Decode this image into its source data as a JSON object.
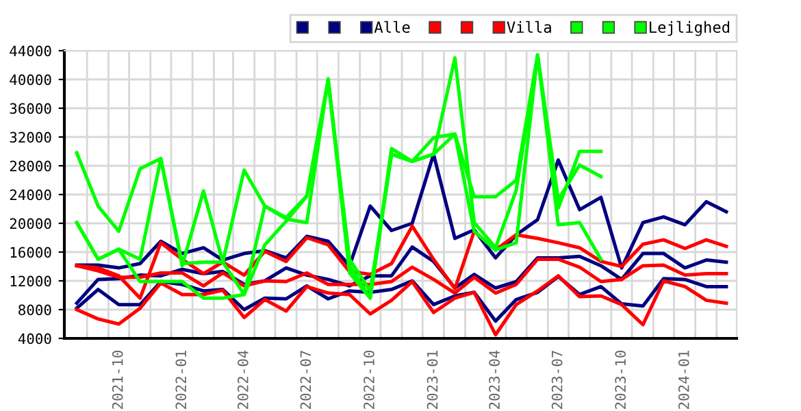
{
  "chart_data": {
    "type": "line",
    "x": [
      "2021-08",
      "2021-09",
      "2021-10",
      "2021-11",
      "2021-12",
      "2022-01",
      "2022-02",
      "2022-03",
      "2022-04",
      "2022-05",
      "2022-06",
      "2022-07",
      "2022-08",
      "2022-09",
      "2022-10",
      "2022-11",
      "2022-12",
      "2023-01",
      "2023-02",
      "2023-03",
      "2023-04",
      "2023-05",
      "2023-06",
      "2023-07",
      "2023-08",
      "2023-09",
      "2023-10",
      "2023-11",
      "2023-12",
      "2024-01",
      "2024-02",
      "2024-03"
    ],
    "series": [
      {
        "color": "#000080",
        "values": [
          8900,
          12200,
          12300,
          12800,
          12700,
          13600,
          13000,
          13300,
          11500,
          12000,
          13800,
          12800,
          12200,
          11300,
          12700,
          12700,
          16700,
          14700,
          11000,
          12900,
          11000,
          11900,
          15200,
          15200,
          15400,
          14100,
          12200,
          15800,
          15800,
          13800,
          14900,
          14600
        ]
      },
      {
        "color": "#000080",
        "values": [
          8200,
          10800,
          8700,
          8700,
          11900,
          11500,
          10600,
          10800,
          8000,
          9600,
          9500,
          11300,
          9500,
          10600,
          10400,
          10800,
          12000,
          8700,
          9900,
          10400,
          6400,
          9400,
          10400,
          12600,
          10100,
          11200,
          8800,
          8500,
          12300,
          12200,
          11200,
          11200
        ]
      },
      {
        "name": "Alle",
        "color": "#000080",
        "values": [
          14200,
          14200,
          13800,
          14400,
          17500,
          15800,
          16600,
          14900,
          15800,
          16200,
          15200,
          18200,
          17500,
          14100,
          22400,
          19000,
          20000,
          29600,
          17900,
          19100,
          15200,
          18400,
          20500,
          28800,
          21900,
          23600,
          13800,
          20100,
          20900,
          19800,
          23000,
          21600
        ]
      },
      {
        "color": "#ff0000",
        "values": [
          14100,
          13400,
          12500,
          12500,
          13100,
          13100,
          11300,
          13100,
          11300,
          12000,
          11900,
          13100,
          11500,
          11500,
          11500,
          11900,
          13900,
          12200,
          10300,
          12500,
          10300,
          11500,
          15000,
          15000,
          13900,
          11900,
          12200,
          14100,
          14200,
          12800,
          13000,
          13000
        ]
      },
      {
        "color": "#ff0000",
        "values": [
          8000,
          6700,
          6000,
          8200,
          11700,
          10100,
          10100,
          10700,
          6900,
          9400,
          7800,
          11200,
          10300,
          10100,
          7400,
          9300,
          11900,
          7600,
          9600,
          10400,
          4500,
          8700,
          10600,
          12700,
          9800,
          9900,
          8700,
          5900,
          12000,
          11200,
          9300,
          8900
        ]
      },
      {
        "name": "Villa",
        "color": "#ff0000",
        "values": [
          14100,
          13800,
          12700,
          9600,
          17300,
          15000,
          13000,
          14600,
          12800,
          16100,
          14700,
          18000,
          17000,
          13300,
          12900,
          14400,
          19600,
          15000,
          10900,
          18900,
          16300,
          18400,
          17900,
          17300,
          16600,
          14700,
          14000,
          17100,
          17700,
          16500,
          17700,
          16800
        ]
      },
      {
        "color": "#00ff00",
        "values": [
          20100,
          15000,
          16400,
          15000,
          29000,
          14400,
          14600,
          14600,
          10100,
          22400,
          20800,
          23800,
          39900,
          15000,
          10600,
          29600,
          28600,
          29600,
          43000,
          20100,
          16600,
          24600,
          43400,
          23300,
          28100,
          26500,
          null,
          null,
          null,
          null,
          null,
          null
        ]
      },
      {
        "color": "#00ff00",
        "values": [
          20100,
          15000,
          16400,
          11900,
          11900,
          11900,
          9600,
          9600,
          10100,
          17000,
          20300,
          23800,
          39900,
          13100,
          9600,
          29600,
          28600,
          29600,
          32400,
          18900,
          16300,
          17300,
          43400,
          19800,
          20100,
          15000,
          null,
          null,
          null,
          null,
          null,
          null
        ]
      },
      {
        "name": "Lejlighed",
        "color": "#00ff00",
        "values": [
          29800,
          22400,
          18900,
          27600,
          29000,
          14100,
          24500,
          14600,
          27400,
          22400,
          20600,
          20100,
          40100,
          14100,
          9600,
          30400,
          28600,
          31900,
          32400,
          23700,
          23700,
          26000,
          43400,
          22100,
          30000,
          30000,
          null,
          null,
          null,
          null,
          null,
          null
        ]
      }
    ],
    "xlim": [
      "2021-07-14",
      "2024-03-16"
    ],
    "xticks": [
      {
        "value": "2021-10",
        "label": "2021-10"
      },
      {
        "value": "2022-01",
        "label": "2022-01"
      },
      {
        "value": "2022-04",
        "label": "2022-04"
      },
      {
        "value": "2022-07",
        "label": "2022-07"
      },
      {
        "value": "2022-10",
        "label": "2022-10"
      },
      {
        "value": "2023-01",
        "label": "2023-01"
      },
      {
        "value": "2023-04",
        "label": "2023-04"
      },
      {
        "value": "2023-07",
        "label": "2023-07"
      },
      {
        "value": "2023-10",
        "label": "2023-10"
      },
      {
        "value": "2024-01",
        "label": "2024-01"
      },
      {
        "value": "2021-08-16",
        "label": null
      },
      {
        "value": "2021-09-16",
        "label": null
      },
      {
        "value": "2021-10-16",
        "label": null
      },
      {
        "value": "2021-11-16",
        "label": null
      },
      {
        "value": "2021-12-16",
        "label": null
      },
      {
        "value": "2022-01-16",
        "label": null
      },
      {
        "value": "2022-02-16",
        "label": null
      },
      {
        "value": "2022-03-16",
        "label": null
      },
      {
        "value": "2022-04-16",
        "label": null
      },
      {
        "value": "2022-05-16",
        "label": null
      },
      {
        "value": "2022-06-16",
        "label": null
      },
      {
        "value": "2022-07-16",
        "label": null
      },
      {
        "value": "2022-08-16",
        "label": null
      },
      {
        "value": "2022-09-16",
        "label": null
      },
      {
        "value": "2022-10-16",
        "label": null
      },
      {
        "value": "2022-11-16",
        "label": null
      },
      {
        "value": "2022-12-16",
        "label": null
      },
      {
        "value": "2023-01-16",
        "label": null
      },
      {
        "value": "2023-02-16",
        "label": null
      },
      {
        "value": "2023-03-16",
        "label": null
      },
      {
        "value": "2023-04-16",
        "label": null
      },
      {
        "value": "2023-05-16",
        "label": null
      },
      {
        "value": "2023-06-16",
        "label": null
      },
      {
        "value": "2023-07-16",
        "label": null
      },
      {
        "value": "2023-08-16",
        "label": null
      },
      {
        "value": "2023-09-16",
        "label": null
      },
      {
        "value": "2023-10-16",
        "label": null
      },
      {
        "value": "2023-11-16",
        "label": null
      },
      {
        "value": "2023-12-16",
        "label": null
      },
      {
        "value": "2024-01-16",
        "label": null
      },
      {
        "value": "2024-02-16",
        "label": null
      }
    ],
    "ylim": [
      4000,
      44000
    ],
    "yticks": [
      4000,
      8000,
      12000,
      16000,
      20000,
      24000,
      28000,
      32000,
      36000,
      40000,
      44000
    ],
    "grid": true,
    "legend": "top right",
    "line_style": "solid"
  }
}
